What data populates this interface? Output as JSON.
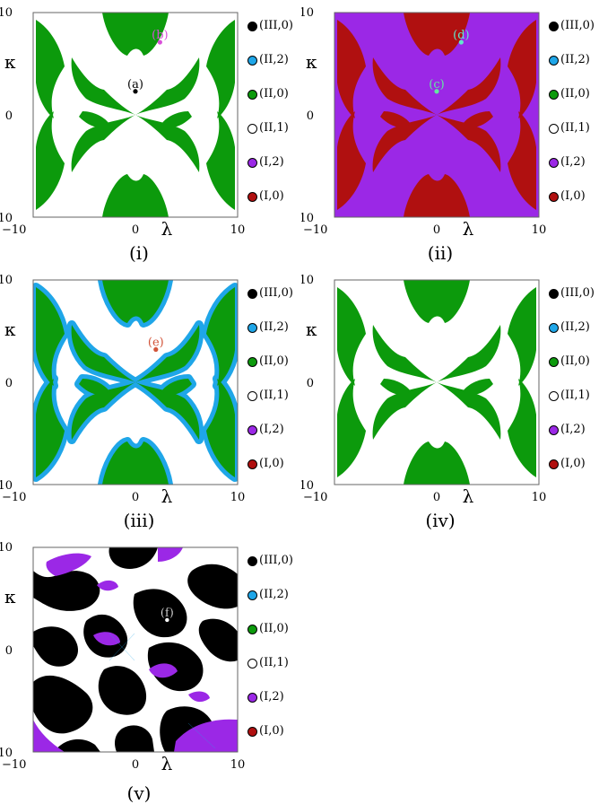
{
  "chart_data": [
    {
      "type": "heatmap",
      "caption": "(i)",
      "xlabel": "λ",
      "ylabel": "κ",
      "xlim": [
        -10,
        10
      ],
      "ylim": [
        -10,
        10
      ],
      "xticks": [
        "−10",
        "0",
        "10"
      ],
      "yticks": [
        "10",
        "0",
        "−10"
      ],
      "regions": [
        "(II,0)",
        "(II,1)"
      ],
      "points": [
        {
          "label": "(a)",
          "x": 0,
          "y": 2.3,
          "color": "#000000"
        },
        {
          "label": "(b)",
          "x": 2.4,
          "y": 7.1,
          "color": "#d94fd9"
        }
      ]
    },
    {
      "type": "heatmap",
      "caption": "(ii)",
      "xlabel": "λ",
      "ylabel": "κ",
      "xlim": [
        -10,
        10
      ],
      "ylim": [
        -10,
        10
      ],
      "xticks": [
        "−10",
        "0",
        "10"
      ],
      "yticks": [
        "10",
        "0",
        "−10"
      ],
      "regions": [
        "(I,0)",
        "(I,2)"
      ],
      "points": [
        {
          "label": "(c)",
          "x": 0,
          "y": 2.3,
          "color": "#62e8a0"
        },
        {
          "label": "(d)",
          "x": 2.4,
          "y": 7.1,
          "color": "#62e8cc"
        }
      ]
    },
    {
      "type": "heatmap",
      "caption": "(iii)",
      "xlabel": "λ",
      "ylabel": "κ",
      "xlim": [
        -10,
        10
      ],
      "ylim": [
        -10,
        10
      ],
      "xticks": [
        "−10",
        "0",
        "10"
      ],
      "yticks": [
        "10",
        "0",
        "−10"
      ],
      "regions": [
        "(II,0)",
        "(II,2)",
        "(II,1)"
      ],
      "points": [
        {
          "label": "(e)",
          "x": 2.0,
          "y": 3.2,
          "color": "#d2553a"
        }
      ]
    },
    {
      "type": "heatmap",
      "caption": "(iv)",
      "xlabel": "λ",
      "ylabel": "κ",
      "xlim": [
        -10,
        10
      ],
      "ylim": [
        -10,
        10
      ],
      "xticks": [
        "−10",
        "0",
        "10"
      ],
      "yticks": [
        "10",
        "0",
        "−10"
      ],
      "regions": [
        "(II,0)",
        "(II,1)"
      ],
      "points": []
    },
    {
      "type": "heatmap",
      "caption": "(v)",
      "xlabel": "λ",
      "ylabel": "κ",
      "xlim": [
        -10,
        10
      ],
      "ylim": [
        -10,
        10
      ],
      "xticks": [
        "−10",
        "0",
        "10"
      ],
      "yticks": [
        "10",
        "0",
        "−10"
      ],
      "regions": [
        "(III,0)",
        "(I,2)",
        "(II,1)"
      ],
      "points": [
        {
          "label": "(f)",
          "x": 3.1,
          "y": 2.9,
          "color": "#ffffff"
        }
      ]
    }
  ],
  "legend": [
    {
      "label": "(III,0)",
      "color": "#000000"
    },
    {
      "label": "(II,2)",
      "color": "#1fa6e8"
    },
    {
      "label": "(II,0)",
      "color": "#0c9a0c"
    },
    {
      "label": "(II,1)",
      "color": "#ffffff"
    },
    {
      "label": "(I,2)",
      "color": "#9b28e6"
    },
    {
      "label": "(I,0)",
      "color": "#b01010"
    }
  ]
}
